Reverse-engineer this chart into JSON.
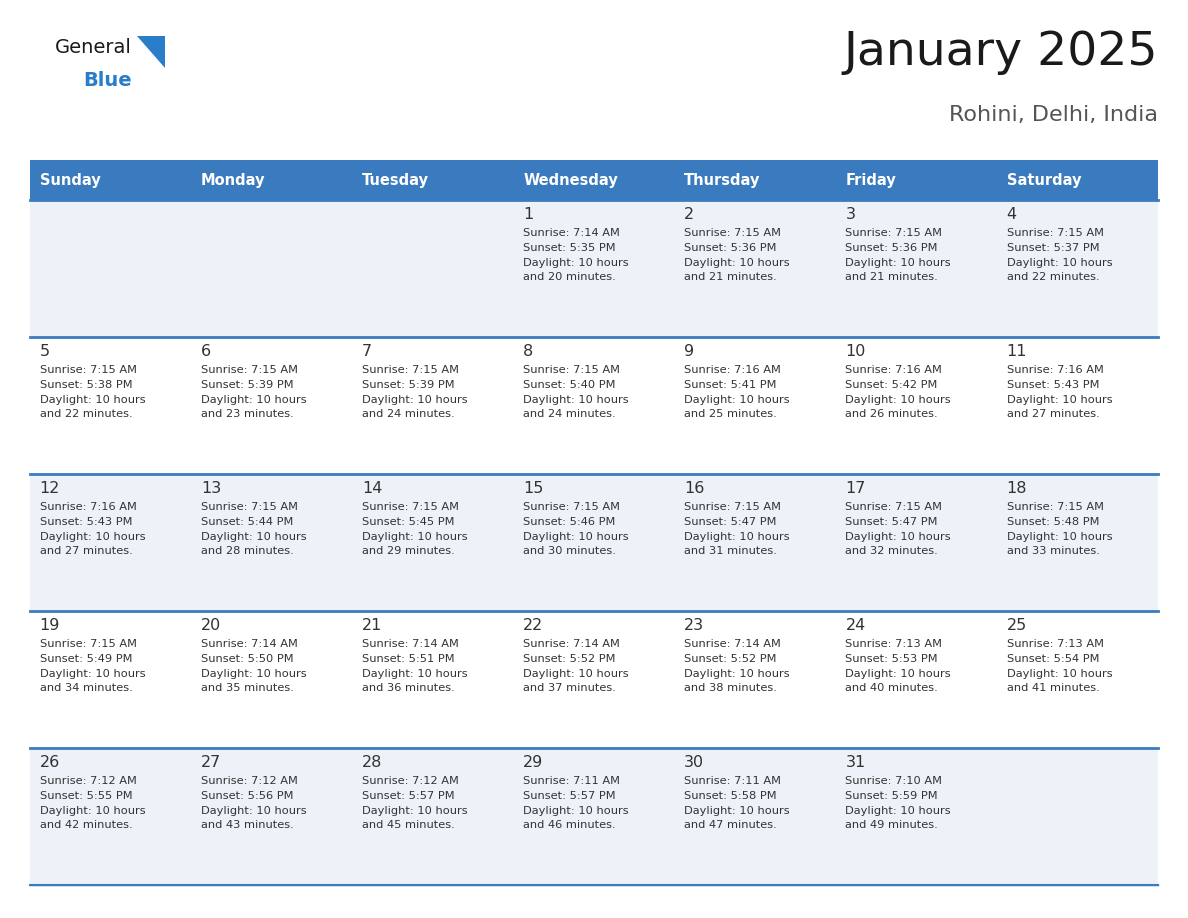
{
  "title": "January 2025",
  "subtitle": "Rohini, Delhi, India",
  "days_of_week": [
    "Sunday",
    "Monday",
    "Tuesday",
    "Wednesday",
    "Thursday",
    "Friday",
    "Saturday"
  ],
  "header_bg": "#3a7abf",
  "header_text": "#ffffff",
  "cell_bg_even": "#edf2f8",
  "cell_bg_odd": "#ffffff",
  "row_divider_color": "#3a7abf",
  "text_color": "#333333",
  "calendar_data": [
    {
      "day": 1,
      "col": 3,
      "row": 0,
      "sunrise": "7:14 AM",
      "sunset": "5:35 PM",
      "daylight": "10 hours and 20 minutes."
    },
    {
      "day": 2,
      "col": 4,
      "row": 0,
      "sunrise": "7:15 AM",
      "sunset": "5:36 PM",
      "daylight": "10 hours and 21 minutes."
    },
    {
      "day": 3,
      "col": 5,
      "row": 0,
      "sunrise": "7:15 AM",
      "sunset": "5:36 PM",
      "daylight": "10 hours and 21 minutes."
    },
    {
      "day": 4,
      "col": 6,
      "row": 0,
      "sunrise": "7:15 AM",
      "sunset": "5:37 PM",
      "daylight": "10 hours and 22 minutes."
    },
    {
      "day": 5,
      "col": 0,
      "row": 1,
      "sunrise": "7:15 AM",
      "sunset": "5:38 PM",
      "daylight": "10 hours and 22 minutes."
    },
    {
      "day": 6,
      "col": 1,
      "row": 1,
      "sunrise": "7:15 AM",
      "sunset": "5:39 PM",
      "daylight": "10 hours and 23 minutes."
    },
    {
      "day": 7,
      "col": 2,
      "row": 1,
      "sunrise": "7:15 AM",
      "sunset": "5:39 PM",
      "daylight": "10 hours and 24 minutes."
    },
    {
      "day": 8,
      "col": 3,
      "row": 1,
      "sunrise": "7:15 AM",
      "sunset": "5:40 PM",
      "daylight": "10 hours and 24 minutes."
    },
    {
      "day": 9,
      "col": 4,
      "row": 1,
      "sunrise": "7:16 AM",
      "sunset": "5:41 PM",
      "daylight": "10 hours and 25 minutes."
    },
    {
      "day": 10,
      "col": 5,
      "row": 1,
      "sunrise": "7:16 AM",
      "sunset": "5:42 PM",
      "daylight": "10 hours and 26 minutes."
    },
    {
      "day": 11,
      "col": 6,
      "row": 1,
      "sunrise": "7:16 AM",
      "sunset": "5:43 PM",
      "daylight": "10 hours and 27 minutes."
    },
    {
      "day": 12,
      "col": 0,
      "row": 2,
      "sunrise": "7:16 AM",
      "sunset": "5:43 PM",
      "daylight": "10 hours and 27 minutes."
    },
    {
      "day": 13,
      "col": 1,
      "row": 2,
      "sunrise": "7:15 AM",
      "sunset": "5:44 PM",
      "daylight": "10 hours and 28 minutes."
    },
    {
      "day": 14,
      "col": 2,
      "row": 2,
      "sunrise": "7:15 AM",
      "sunset": "5:45 PM",
      "daylight": "10 hours and 29 minutes."
    },
    {
      "day": 15,
      "col": 3,
      "row": 2,
      "sunrise": "7:15 AM",
      "sunset": "5:46 PM",
      "daylight": "10 hours and 30 minutes."
    },
    {
      "day": 16,
      "col": 4,
      "row": 2,
      "sunrise": "7:15 AM",
      "sunset": "5:47 PM",
      "daylight": "10 hours and 31 minutes."
    },
    {
      "day": 17,
      "col": 5,
      "row": 2,
      "sunrise": "7:15 AM",
      "sunset": "5:47 PM",
      "daylight": "10 hours and 32 minutes."
    },
    {
      "day": 18,
      "col": 6,
      "row": 2,
      "sunrise": "7:15 AM",
      "sunset": "5:48 PM",
      "daylight": "10 hours and 33 minutes."
    },
    {
      "day": 19,
      "col": 0,
      "row": 3,
      "sunrise": "7:15 AM",
      "sunset": "5:49 PM",
      "daylight": "10 hours and 34 minutes."
    },
    {
      "day": 20,
      "col": 1,
      "row": 3,
      "sunrise": "7:14 AM",
      "sunset": "5:50 PM",
      "daylight": "10 hours and 35 minutes."
    },
    {
      "day": 21,
      "col": 2,
      "row": 3,
      "sunrise": "7:14 AM",
      "sunset": "5:51 PM",
      "daylight": "10 hours and 36 minutes."
    },
    {
      "day": 22,
      "col": 3,
      "row": 3,
      "sunrise": "7:14 AM",
      "sunset": "5:52 PM",
      "daylight": "10 hours and 37 minutes."
    },
    {
      "day": 23,
      "col": 4,
      "row": 3,
      "sunrise": "7:14 AM",
      "sunset": "5:52 PM",
      "daylight": "10 hours and 38 minutes."
    },
    {
      "day": 24,
      "col": 5,
      "row": 3,
      "sunrise": "7:13 AM",
      "sunset": "5:53 PM",
      "daylight": "10 hours and 40 minutes."
    },
    {
      "day": 25,
      "col": 6,
      "row": 3,
      "sunrise": "7:13 AM",
      "sunset": "5:54 PM",
      "daylight": "10 hours and 41 minutes."
    },
    {
      "day": 26,
      "col": 0,
      "row": 4,
      "sunrise": "7:12 AM",
      "sunset": "5:55 PM",
      "daylight": "10 hours and 42 minutes."
    },
    {
      "day": 27,
      "col": 1,
      "row": 4,
      "sunrise": "7:12 AM",
      "sunset": "5:56 PM",
      "daylight": "10 hours and 43 minutes."
    },
    {
      "day": 28,
      "col": 2,
      "row": 4,
      "sunrise": "7:12 AM",
      "sunset": "5:57 PM",
      "daylight": "10 hours and 45 minutes."
    },
    {
      "day": 29,
      "col": 3,
      "row": 4,
      "sunrise": "7:11 AM",
      "sunset": "5:57 PM",
      "daylight": "10 hours and 46 minutes."
    },
    {
      "day": 30,
      "col": 4,
      "row": 4,
      "sunrise": "7:11 AM",
      "sunset": "5:58 PM",
      "daylight": "10 hours and 47 minutes."
    },
    {
      "day": 31,
      "col": 5,
      "row": 4,
      "sunrise": "7:10 AM",
      "sunset": "5:59 PM",
      "daylight": "10 hours and 49 minutes."
    }
  ],
  "num_rows": 5,
  "empty_cells_row0": [
    0,
    1,
    2
  ],
  "empty_cells_row4": [
    6
  ],
  "logo_text_general": "General",
  "logo_text_blue": "Blue",
  "logo_color_general": "#1a1a1a",
  "logo_color_blue": "#2a7dc9",
  "logo_triangle_color": "#2a7dc9"
}
